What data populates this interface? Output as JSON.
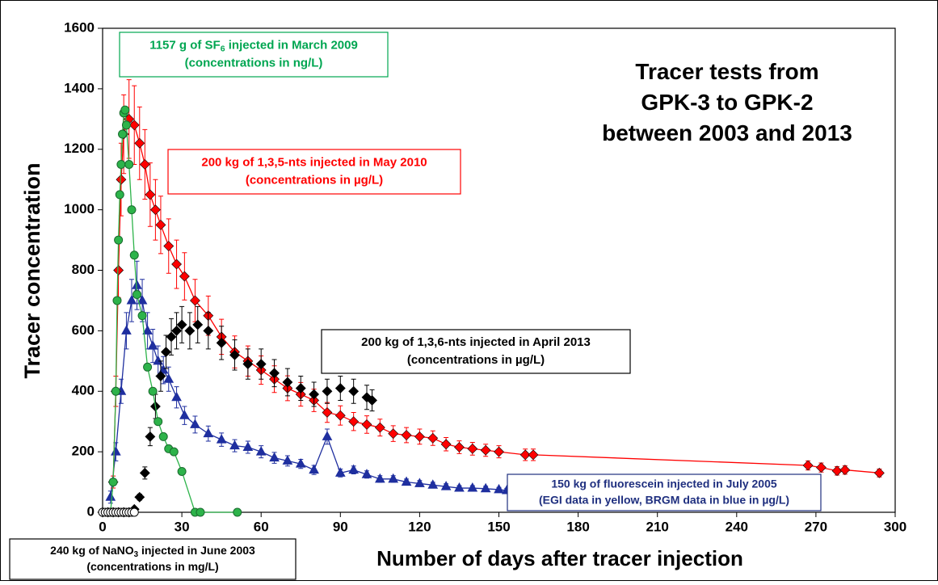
{
  "chart_data": {
    "type": "scatter",
    "y_label": "Tracer concentration",
    "x_label": "Number of days after tracer injection",
    "xlim": [
      0,
      300
    ],
    "xticks": [
      0,
      30,
      60,
      90,
      120,
      150,
      180,
      210,
      240,
      270,
      300
    ],
    "ylim": [
      0,
      1600
    ],
    "yticks": [
      0,
      200,
      400,
      600,
      800,
      1000,
      1200,
      1400,
      1600
    ],
    "annotations": [
      {
        "color": "#000000",
        "border": null,
        "lines": [
          [
            "Tracer tests from"
          ],
          [
            "GPK-3 to GPK-2"
          ],
          [
            "between 2003 and 2013"
          ]
        ]
      },
      {
        "color": "#00a651",
        "border": "#00a651",
        "lines": [
          [
            "1157 g of SF",
            {
              "sub": "6"
            },
            " injected in March 2009"
          ],
          [
            "(concentrations in ng/L)"
          ]
        ]
      },
      {
        "color": "#ff0000",
        "border": "#ff0000",
        "lines": [
          [
            "200 kg of 1,3,5-nts injected in May 2010"
          ],
          [
            "(concentrations in µg/L)"
          ]
        ]
      },
      {
        "color": "#000000",
        "border": "#000000",
        "lines": [
          [
            "200 kg of 1,3,6-nts injected in April 2013"
          ],
          [
            "(concentrations in µg/L)"
          ]
        ]
      },
      {
        "color": "#1f2f7f",
        "border": "#1f2f7f",
        "lines": [
          [
            "150 kg of fluorescein injected in July 2005"
          ],
          [
            "(EGI data in yellow, BRGM data in blue in µg/L)"
          ]
        ]
      },
      {
        "color": "#000000",
        "border": "#000000",
        "lines": [
          [
            "240 kg of NaNO",
            {
              "sub": "3"
            },
            " injected in June 2003"
          ],
          [
            "(concentrations in mg/L)"
          ]
        ]
      }
    ],
    "series": [
      {
        "marker": "triangle",
        "color": "#1f2f9f",
        "line": true,
        "x": [
          3,
          5,
          7,
          9,
          11,
          13,
          15,
          17,
          19,
          21,
          23,
          25,
          28,
          31,
          35,
          40,
          45,
          50,
          55,
          60,
          65,
          70,
          75,
          80,
          85,
          90,
          95,
          100,
          105,
          110,
          115,
          120,
          125,
          130,
          135,
          140,
          145,
          150,
          153
        ],
        "values": [
          50,
          200,
          400,
          600,
          700,
          750,
          700,
          600,
          550,
          500,
          470,
          440,
          380,
          320,
          290,
          260,
          240,
          220,
          215,
          200,
          180,
          170,
          160,
          140,
          250,
          130,
          140,
          125,
          110,
          110,
          100,
          95,
          90,
          85,
          80,
          80,
          78,
          75,
          72
        ],
        "errors": [
          20,
          30,
          40,
          60,
          70,
          80,
          70,
          60,
          55,
          50,
          45,
          40,
          35,
          30,
          28,
          25,
          22,
          20,
          20,
          20,
          18,
          17,
          15,
          15,
          25,
          13,
          13,
          12,
          11,
          11,
          10,
          10,
          9,
          9,
          8,
          8,
          8,
          7,
          7
        ]
      },
      {
        "marker": "diamond",
        "color": "#ff0000",
        "line": true,
        "x": [
          4,
          5,
          6,
          7,
          8,
          10,
          12,
          14,
          16,
          18,
          20,
          22,
          25,
          28,
          31,
          35,
          40,
          45,
          50,
          55,
          60,
          65,
          70,
          75,
          80,
          85,
          90,
          95,
          100,
          105,
          110,
          115,
          120,
          125,
          130,
          135,
          140,
          145,
          150,
          160,
          163,
          267,
          272,
          278,
          281,
          294
        ],
        "values": [
          100,
          400,
          800,
          1100,
          1250,
          1300,
          1280,
          1220,
          1150,
          1050,
          1000,
          950,
          880,
          820,
          780,
          700,
          650,
          580,
          530,
          500,
          470,
          440,
          410,
          390,
          370,
          330,
          320,
          300,
          290,
          280,
          260,
          255,
          250,
          245,
          225,
          215,
          210,
          205,
          200,
          190,
          190,
          155,
          148,
          137,
          140,
          130
        ],
        "errors": [
          20,
          50,
          90,
          120,
          130,
          130,
          130,
          120,
          115,
          105,
          100,
          95,
          90,
          80,
          78,
          70,
          65,
          58,
          53,
          50,
          47,
          44,
          41,
          39,
          37,
          33,
          32,
          30,
          29,
          28,
          26,
          25,
          25,
          24,
          22,
          21,
          21,
          20,
          20,
          19,
          19,
          15,
          15,
          14,
          14,
          13
        ]
      },
      {
        "marker": "diamond",
        "color": "#000000",
        "line": false,
        "x": [
          0,
          2,
          4,
          6,
          8,
          10,
          12,
          14,
          16,
          18,
          20,
          22,
          24,
          26,
          28,
          30,
          33,
          36,
          40,
          45,
          50,
          55,
          60,
          65,
          70,
          75,
          80,
          85,
          90,
          95,
          100,
          102
        ],
        "values": [
          0,
          0,
          0,
          0,
          0,
          0,
          10,
          50,
          130,
          250,
          350,
          450,
          530,
          580,
          600,
          620,
          600,
          620,
          600,
          560,
          520,
          490,
          490,
          460,
          430,
          410,
          390,
          400,
          410,
          400,
          380,
          370
        ],
        "errors": [
          0,
          0,
          0,
          0,
          0,
          0,
          5,
          10,
          20,
          30,
          40,
          50,
          55,
          60,
          60,
          60,
          60,
          60,
          60,
          55,
          50,
          50,
          50,
          45,
          45,
          40,
          40,
          40,
          40,
          40,
          40,
          35
        ]
      },
      {
        "marker": "circle",
        "color": "#2db34a",
        "line": true,
        "x": [
          3,
          4,
          5,
          5.5,
          6,
          6.5,
          7,
          7.5,
          8,
          8.5,
          9,
          10,
          11,
          12,
          13,
          15,
          17,
          19,
          21,
          23,
          25,
          27,
          30,
          35,
          37,
          51
        ],
        "values": [
          0,
          100,
          400,
          700,
          900,
          1050,
          1150,
          1250,
          1320,
          1330,
          1280,
          1150,
          1000,
          850,
          720,
          650,
          480,
          400,
          300,
          250,
          210,
          200,
          135,
          0,
          0,
          0
        ]
      },
      {
        "marker": "circle",
        "color": "#ffffff",
        "line": false,
        "x": [
          0,
          1,
          2,
          3,
          4,
          5,
          6,
          7,
          8,
          9,
          10,
          11,
          12
        ],
        "values": [
          0,
          0,
          0,
          0,
          0,
          0,
          0,
          0,
          0,
          0,
          0,
          0,
          0
        ]
      }
    ]
  }
}
